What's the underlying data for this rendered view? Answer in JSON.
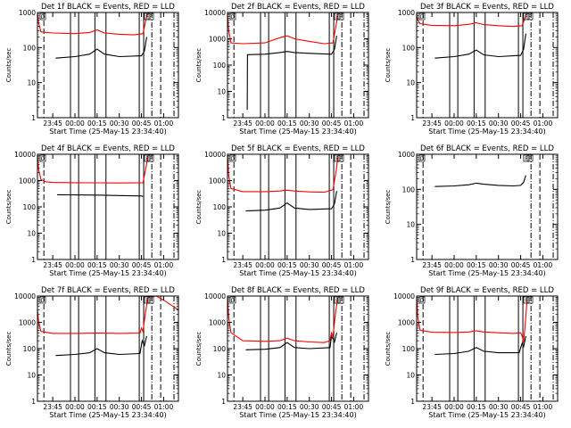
{
  "chart_data": {
    "type": "line",
    "y_scale": "log",
    "ylim": [
      1,
      10000
    ],
    "ytick_values": [
      1,
      10,
      100,
      1000,
      10000
    ],
    "ytick_labels": [
      "1",
      "10",
      "100",
      "1000",
      "10000"
    ],
    "ylabel": "Counts/sec",
    "xlabel": "Start Time (25-May-15 23:34:40)",
    "xlim": [
      "23:34:40",
      "01:10:00"
    ],
    "xtick_labels": [
      "23:45",
      "00:00",
      "00:15",
      "00:30",
      "00:45",
      "01:00"
    ],
    "series_colors": {
      "events": "#000000",
      "lld": "#ff0000"
    },
    "panels": [
      {
        "title": "Det 1f BLACK = Events, RED = LLD",
        "flags": [
          "D",
          "F",
          "F"
        ],
        "ylim": [
          1,
          1000
        ],
        "ytick_labels": [
          "1",
          "10",
          "100",
          "1000"
        ],
        "solid_lines": [
          "23:57:00",
          "00:02:30",
          "00:13:30",
          "00:21:00",
          "00:43:30",
          "00:46:30"
        ],
        "dashed_lines": [
          "23:39:00",
          "00:58:00"
        ],
        "dashdot_lines": [
          "00:52:00",
          "01:07:00"
        ],
        "lld": [
          [
            "23:34:40",
            900
          ],
          [
            "23:35:30",
            500
          ],
          [
            "23:37:00",
            280
          ],
          [
            "23:45:00",
            260
          ],
          [
            "00:00:00",
            250
          ],
          [
            "00:10:00",
            270
          ],
          [
            "00:15:00",
            320
          ],
          [
            "00:20:00",
            260
          ],
          [
            "00:30:00",
            240
          ],
          [
            "00:40:00",
            230
          ],
          [
            "00:46:00",
            250
          ],
          [
            "00:48:00",
            600
          ],
          [
            "00:49:00",
            1000
          ]
        ],
        "events": [
          [
            "23:47:00",
            50
          ],
          [
            "00:00:00",
            55
          ],
          [
            "00:10:00",
            65
          ],
          [
            "00:15:00",
            90
          ],
          [
            "00:20:00",
            65
          ],
          [
            "00:30:00",
            55
          ],
          [
            "00:45:00",
            58
          ],
          [
            "00:47:00",
            80
          ],
          [
            "00:48:30",
            200
          ]
        ]
      },
      {
        "title": "Det 2f BLACK = Events, RED = LLD",
        "flags": [
          "D",
          "F",
          "F"
        ],
        "ylim": [
          1,
          10000
        ],
        "ytick_labels": [
          "1",
          "10",
          "100",
          "1000",
          "10000"
        ],
        "solid_lines": [
          "23:57:00",
          "00:02:30",
          "00:13:30",
          "00:21:00",
          "00:43:30",
          "00:46:30"
        ],
        "dashed_lines": [
          "23:39:00",
          "00:58:00"
        ],
        "dashdot_lines": [
          "00:52:00",
          "01:07:00"
        ],
        "lld": [
          [
            "23:34:40",
            9000
          ],
          [
            "23:35:30",
            2000
          ],
          [
            "23:37:00",
            700
          ],
          [
            "23:45:00",
            650
          ],
          [
            "00:00:00",
            700
          ],
          [
            "00:10:00",
            1100
          ],
          [
            "00:15:00",
            1300
          ],
          [
            "00:20:00",
            1000
          ],
          [
            "00:30:00",
            800
          ],
          [
            "00:40:00",
            650
          ],
          [
            "00:46:00",
            700
          ],
          [
            "00:48:00",
            3000
          ],
          [
            "00:49:30",
            9000
          ]
        ],
        "events": [
          [
            "23:48:00",
            2
          ],
          [
            "23:48:10",
            250
          ],
          [
            "00:00:00",
            260
          ],
          [
            "00:10:00",
            300
          ],
          [
            "00:15:00",
            330
          ],
          [
            "00:20:00",
            300
          ],
          [
            "00:30:00",
            280
          ],
          [
            "00:45:00",
            260
          ],
          [
            "00:47:00",
            400
          ],
          [
            "00:48:30",
            1300
          ]
        ]
      },
      {
        "title": "Det 3f BLACK = Events, RED = LLD",
        "flags": [
          "D",
          "F",
          "F"
        ],
        "ylim": [
          1,
          1000
        ],
        "ytick_labels": [
          "1",
          "10",
          "100",
          "1000"
        ],
        "solid_lines": [
          "23:57:00",
          "00:02:30",
          "00:13:30",
          "00:21:00",
          "00:43:30",
          "00:46:30"
        ],
        "dashed_lines": [
          "23:39:00",
          "00:58:00"
        ],
        "dashdot_lines": [
          "00:52:00",
          "01:07:00"
        ],
        "lld": [
          [
            "23:34:40",
            900
          ],
          [
            "23:35:30",
            600
          ],
          [
            "23:37:00",
            480
          ],
          [
            "23:45:00",
            430
          ],
          [
            "00:00:00",
            420
          ],
          [
            "00:10:00",
            460
          ],
          [
            "00:15:00",
            510
          ],
          [
            "00:20:00",
            450
          ],
          [
            "00:30:00",
            420
          ],
          [
            "00:40:00",
            400
          ],
          [
            "00:46:00",
            420
          ],
          [
            "00:48:00",
            700
          ],
          [
            "00:49:00",
            1000
          ]
        ],
        "events": [
          [
            "23:47:00",
            50
          ],
          [
            "00:00:00",
            55
          ],
          [
            "00:10:00",
            65
          ],
          [
            "00:15:00",
            85
          ],
          [
            "00:20:00",
            62
          ],
          [
            "00:30:00",
            55
          ],
          [
            "00:45:00",
            60
          ],
          [
            "00:47:00",
            90
          ],
          [
            "00:48:30",
            250
          ]
        ]
      },
      {
        "title": "Det 4f BLACK = Events, RED = LLD",
        "flags": [
          "D",
          "F",
          "F"
        ],
        "ylim": [
          1,
          10000
        ],
        "ytick_labels": [
          "1",
          "10",
          "100",
          "1000",
          "10000"
        ],
        "solid_lines": [
          "23:57:00",
          "00:02:30",
          "00:13:30",
          "00:21:00",
          "00:43:30",
          "00:46:30"
        ],
        "dashed_lines": [
          "23:39:00",
          "00:58:00"
        ],
        "dashdot_lines": [
          "00:52:00",
          "01:07:00"
        ],
        "lld": [
          [
            "23:34:40",
            9000
          ],
          [
            "23:35:30",
            2500
          ],
          [
            "23:37:00",
            1100
          ],
          [
            "23:40:00",
            900
          ],
          [
            "23:45:00",
            850
          ],
          [
            "00:00:00",
            830
          ],
          [
            "00:15:00",
            820
          ],
          [
            "00:30:00",
            810
          ],
          [
            "00:46:00",
            830
          ],
          [
            "00:48:00",
            3000
          ],
          [
            "00:49:30",
            9000
          ]
        ],
        "events": [
          [
            "23:48:00",
            290
          ],
          [
            "00:00:00",
            285
          ],
          [
            "00:15:00",
            280
          ],
          [
            "00:30:00",
            270
          ],
          [
            "00:45:00",
            260
          ],
          [
            "00:46:00",
            250
          ]
        ]
      },
      {
        "title": "Det 5f BLACK = Events, RED = LLD",
        "flags": [
          "D",
          "F",
          "F"
        ],
        "ylim": [
          1,
          10000
        ],
        "ytick_labels": [
          "1",
          "10",
          "100",
          "1000",
          "10000"
        ],
        "solid_lines": [
          "23:57:00",
          "00:02:30",
          "00:13:30",
          "00:21:00",
          "00:43:30",
          "00:46:30"
        ],
        "dashed_lines": [
          "23:39:00",
          "00:58:00"
        ],
        "dashdot_lines": [
          "00:52:00",
          "01:07:00"
        ],
        "lld": [
          [
            "23:34:40",
            9000
          ],
          [
            "23:35:30",
            1500
          ],
          [
            "23:37:00",
            500
          ],
          [
            "23:45:00",
            380
          ],
          [
            "00:00:00",
            380
          ],
          [
            "00:10:00",
            400
          ],
          [
            "00:15:00",
            430
          ],
          [
            "00:20:00",
            400
          ],
          [
            "00:30:00",
            370
          ],
          [
            "00:40:00",
            360
          ],
          [
            "00:46:00",
            450
          ],
          [
            "00:48:00",
            2000
          ],
          [
            "00:49:30",
            9000
          ]
        ],
        "events": [
          [
            "23:47:00",
            70
          ],
          [
            "00:00:00",
            75
          ],
          [
            "00:10:00",
            90
          ],
          [
            "00:15:00",
            140
          ],
          [
            "00:20:00",
            90
          ],
          [
            "00:30:00",
            80
          ],
          [
            "00:45:00",
            85
          ],
          [
            "00:47:00",
            130
          ],
          [
            "00:48:30",
            400
          ]
        ]
      },
      {
        "title": "Det 6f BLACK = Events, RED = LLD",
        "flags": [
          "D",
          "F",
          "F"
        ],
        "ylim": [
          1,
          1000
        ],
        "ytick_labels": [
          "1",
          "10",
          "100",
          "1000"
        ],
        "solid_lines": [],
        "dashed_lines": [
          "23:39:00",
          "00:58:00"
        ],
        "dashdot_lines": [
          "00:52:00",
          "01:07:00"
        ],
        "lld": [],
        "events": [
          [
            "23:47:00",
            120
          ],
          [
            "00:00:00",
            125
          ],
          [
            "00:10:00",
            135
          ],
          [
            "00:15:00",
            150
          ],
          [
            "00:20:00",
            140
          ],
          [
            "00:30:00",
            130
          ],
          [
            "00:40:00",
            125
          ],
          [
            "00:45:00",
            130
          ],
          [
            "00:47:00",
            160
          ],
          [
            "00:48:30",
            250
          ]
        ]
      },
      {
        "title": "Det 7f BLACK = Events, RED = LLD",
        "flags": [
          "D",
          "F",
          "F"
        ],
        "ylim": [
          1,
          10000
        ],
        "ytick_labels": [
          "1",
          "10",
          "100",
          "1000",
          "10000"
        ],
        "solid_lines": [
          "23:57:00",
          "00:02:30",
          "00:13:30",
          "00:21:00",
          "00:43:30",
          "00:46:30"
        ],
        "dashed_lines": [
          "23:39:00",
          "00:58:00"
        ],
        "dashdot_lines": [
          "00:52:00",
          "01:07:00"
        ],
        "lld": [
          [
            "23:34:40",
            3000
          ],
          [
            "23:35:30",
            1000
          ],
          [
            "23:37:00",
            450
          ],
          [
            "23:45:00",
            380
          ],
          [
            "00:00:00",
            380
          ],
          [
            "00:15:00",
            390
          ],
          [
            "00:30:00",
            380
          ],
          [
            "00:44:00",
            390
          ],
          [
            "00:45:00",
            600
          ],
          [
            "00:46:00",
            450
          ],
          [
            "00:48:00",
            3000
          ],
          [
            "00:49:30",
            9000
          ],
          [
            "00:55:00",
            10000
          ],
          [
            "01:00:00",
            7000
          ],
          [
            "01:10:00",
            3000
          ]
        ],
        "events": [
          [
            "23:47:00",
            55
          ],
          [
            "00:00:00",
            60
          ],
          [
            "00:10:00",
            70
          ],
          [
            "00:15:00",
            100
          ],
          [
            "00:20:00",
            70
          ],
          [
            "00:30:00",
            60
          ],
          [
            "00:44:00",
            65
          ],
          [
            "00:45:30",
            200
          ],
          [
            "00:47:00",
            130
          ],
          [
            "00:48:30",
            300
          ]
        ]
      },
      {
        "title": "Det 8f BLACK = Events, RED = LLD",
        "flags": [
          "D",
          "F",
          "F"
        ],
        "ylim": [
          1,
          10000
        ],
        "ytick_labels": [
          "1",
          "10",
          "100",
          "1000",
          "10000"
        ],
        "solid_lines": [
          "23:57:00",
          "00:02:30",
          "00:13:30",
          "00:21:00",
          "00:43:30",
          "00:46:30"
        ],
        "dashed_lines": [
          "23:39:00",
          "00:58:00"
        ],
        "dashdot_lines": [
          "00:52:00",
          "01:07:00"
        ],
        "lld": [
          [
            "23:34:40",
            9000
          ],
          [
            "23:35:30",
            1500
          ],
          [
            "23:37:00",
            400
          ],
          [
            "23:45:00",
            200
          ],
          [
            "00:00:00",
            190
          ],
          [
            "00:10:00",
            200
          ],
          [
            "00:15:00",
            250
          ],
          [
            "00:20:00",
            200
          ],
          [
            "00:30:00",
            180
          ],
          [
            "00:40:00",
            170
          ],
          [
            "00:44:00",
            200
          ],
          [
            "00:45:00",
            400
          ],
          [
            "00:46:00",
            300
          ],
          [
            "00:48:00",
            3000
          ],
          [
            "00:49:30",
            9000
          ]
        ],
        "events": [
          [
            "23:47:00",
            90
          ],
          [
            "00:00:00",
            95
          ],
          [
            "00:10:00",
            110
          ],
          [
            "00:15:00",
            170
          ],
          [
            "00:20:00",
            110
          ],
          [
            "00:30:00",
            100
          ],
          [
            "00:44:00",
            110
          ],
          [
            "00:45:00",
            300
          ],
          [
            "00:47:00",
            180
          ],
          [
            "00:48:30",
            400
          ]
        ]
      },
      {
        "title": "Det 9f BLACK = Events, RED = LLD",
        "flags": [
          "D",
          "F",
          "F"
        ],
        "ylim": [
          1,
          10000
        ],
        "ytick_labels": [
          "1",
          "10",
          "100",
          "1000",
          "10000"
        ],
        "solid_lines": [
          "23:57:00",
          "00:02:30",
          "00:13:30",
          "00:21:00",
          "00:43:30",
          "00:46:30"
        ],
        "dashed_lines": [
          "23:39:00",
          "00:58:00"
        ],
        "dashdot_lines": [
          "00:52:00",
          "01:07:00"
        ],
        "lld": [
          [
            "23:34:40",
            9000
          ],
          [
            "23:35:30",
            1500
          ],
          [
            "23:37:00",
            500
          ],
          [
            "23:45:00",
            420
          ],
          [
            "00:00:00",
            410
          ],
          [
            "00:10:00",
            430
          ],
          [
            "00:15:00",
            480
          ],
          [
            "00:20:00",
            430
          ],
          [
            "00:30:00",
            400
          ],
          [
            "00:40:00",
            380
          ],
          [
            "00:45:00",
            400
          ],
          [
            "00:46:00",
            300
          ],
          [
            "00:47:00",
            180
          ],
          [
            "00:48:00",
            700
          ],
          [
            "00:49:30",
            9000
          ]
        ],
        "events": [
          [
            "23:47:00",
            60
          ],
          [
            "00:00:00",
            65
          ],
          [
            "00:10:00",
            80
          ],
          [
            "00:15:00",
            110
          ],
          [
            "00:20:00",
            80
          ],
          [
            "00:30:00",
            70
          ],
          [
            "00:44:00",
            70
          ],
          [
            "00:46:00",
            160
          ],
          [
            "00:47:00",
            120
          ],
          [
            "00:48:30",
            300
          ]
        ]
      }
    ]
  }
}
